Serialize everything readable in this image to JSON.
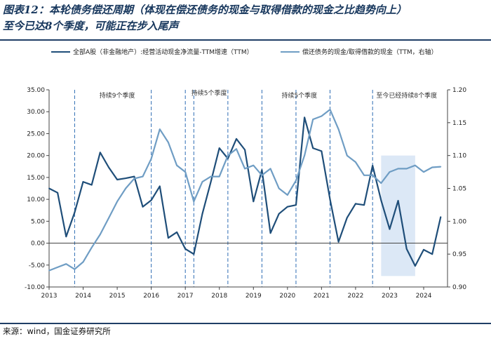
{
  "title_line1": "图表12：本轮债务偿还周期（体现在偿还债务的现金与取得借款的现金之比趋势向上）",
  "title_line2": "至今已达8个季度，可能正在步入尾声",
  "source": "来源：wind，国金证券研究所",
  "colors": {
    "title": "#16365c",
    "series_primary": "#1f4e79",
    "series_secondary": "#6f9dc4",
    "shade": "#dce8f6",
    "dashed": "#2e6db4",
    "rule": "#1f3e66"
  },
  "chart_data": {
    "type": "line",
    "xlim": [
      2013,
      2024.7
    ],
    "x_ticks": [
      "2013",
      "2014",
      "2015",
      "2016",
      "2017",
      "2018",
      "2019",
      "2020",
      "2021",
      "2022",
      "2023",
      "2024"
    ],
    "x_tick_positions": [
      2013,
      2014,
      2015,
      2016,
      2017,
      2018,
      2019,
      2020,
      2021,
      2022,
      2023,
      2024
    ],
    "y_left": {
      "min": -10,
      "max": 35,
      "ticks": [
        "35.00",
        "30.00",
        "25.00",
        "20.00",
        "15.00",
        "10.00",
        "5.00",
        "0.00",
        "-5.00",
        "-10.00"
      ],
      "tick_values": [
        35,
        30,
        25,
        20,
        15,
        10,
        5,
        0,
        -5,
        -10
      ]
    },
    "y_right": {
      "min": 0.9,
      "max": 1.2,
      "ticks": [
        "1.20",
        "1.15",
        "1.10",
        "1.05",
        "1.00",
        "0.95",
        "0.90"
      ],
      "tick_values": [
        1.2,
        1.15,
        1.1,
        1.05,
        1.0,
        0.95,
        0.9
      ]
    },
    "series": [
      {
        "name": "全部A股（非金融地产）:经营活动现金净流量-TTM增速（TTM）",
        "axis": "left",
        "x": [
          2013.0,
          2013.25,
          2013.5,
          2013.75,
          2014.0,
          2014.25,
          2014.5,
          2014.75,
          2015.0,
          2015.25,
          2015.5,
          2015.75,
          2016.0,
          2016.25,
          2016.5,
          2016.75,
          2017.0,
          2017.25,
          2017.5,
          2017.75,
          2018.0,
          2018.25,
          2018.5,
          2018.75,
          2019.0,
          2019.25,
          2019.5,
          2019.75,
          2020.0,
          2020.25,
          2020.5,
          2020.75,
          2021.0,
          2021.25,
          2021.5,
          2021.75,
          2022.0,
          2022.25,
          2022.5,
          2022.75,
          2023.0,
          2023.25,
          2023.5,
          2023.75,
          2024.0,
          2024.25,
          2024.5
        ],
        "y": [
          12.5,
          11.5,
          1.5,
          7.0,
          14.0,
          13.3,
          20.7,
          17.3,
          14.5,
          14.8,
          15.2,
          8.3,
          9.8,
          13.0,
          1.2,
          2.5,
          -1.3,
          -2.5,
          6.7,
          14.0,
          21.7,
          19.3,
          23.8,
          21.3,
          9.5,
          16.7,
          2.3,
          6.7,
          8.3,
          8.7,
          28.7,
          21.7,
          21.0,
          10.0,
          0.3,
          5.8,
          9.0,
          8.7,
          17.7,
          9.8,
          3.2,
          9.7,
          -1.3,
          -5.2,
          -1.5,
          -2.5,
          6.0
        ]
      },
      {
        "name": "偿还债务的现金/取得借款的现金（TTM，右轴）",
        "axis": "right",
        "x": [
          2013.0,
          2013.25,
          2013.5,
          2013.75,
          2014.0,
          2014.25,
          2014.5,
          2014.75,
          2015.0,
          2015.25,
          2015.5,
          2015.75,
          2016.0,
          2016.25,
          2016.5,
          2016.75,
          2017.0,
          2017.25,
          2017.5,
          2017.75,
          2018.0,
          2018.25,
          2018.5,
          2018.75,
          2019.0,
          2019.25,
          2019.5,
          2019.75,
          2020.0,
          2020.25,
          2020.5,
          2020.75,
          2021.0,
          2021.25,
          2021.5,
          2021.75,
          2022.0,
          2022.25,
          2022.5,
          2022.75,
          2023.0,
          2023.25,
          2023.5,
          2023.75,
          2024.0,
          2024.25,
          2024.5
        ],
        "y": [
          0.925,
          0.93,
          0.935,
          0.927,
          0.938,
          0.96,
          0.98,
          1.005,
          1.03,
          1.05,
          1.065,
          1.068,
          1.095,
          1.14,
          1.12,
          1.085,
          1.075,
          1.03,
          1.06,
          1.068,
          1.068,
          1.1,
          1.11,
          1.08,
          1.085,
          1.07,
          1.08,
          1.05,
          1.04,
          1.062,
          1.1,
          1.155,
          1.16,
          1.17,
          1.14,
          1.1,
          1.09,
          1.07,
          1.07,
          1.058,
          1.075,
          1.08,
          1.08,
          1.085,
          1.075,
          1.082,
          1.083
        ]
      }
    ],
    "shaded_region": [
      2022.75,
      2023.75
    ],
    "dashed_lines": [
      2013.75,
      2016.0,
      2017.0,
      2017.25,
      2018.25,
      2019.25,
      2020.25,
      2021.25,
      2022.5
    ],
    "annotations": [
      {
        "text": "持续9个季度",
        "x": 2015.0,
        "y": 33.2
      },
      {
        "text": "持续5个季度",
        "x": 2017.7,
        "y": 33.8
      },
      {
        "text": "持续5个季度",
        "x": 2020.35,
        "y": 33.2
      },
      {
        "text": "至今已经持续8个季度",
        "x": 2023.5,
        "y": 33.2
      }
    ],
    "legend_position": "top"
  }
}
